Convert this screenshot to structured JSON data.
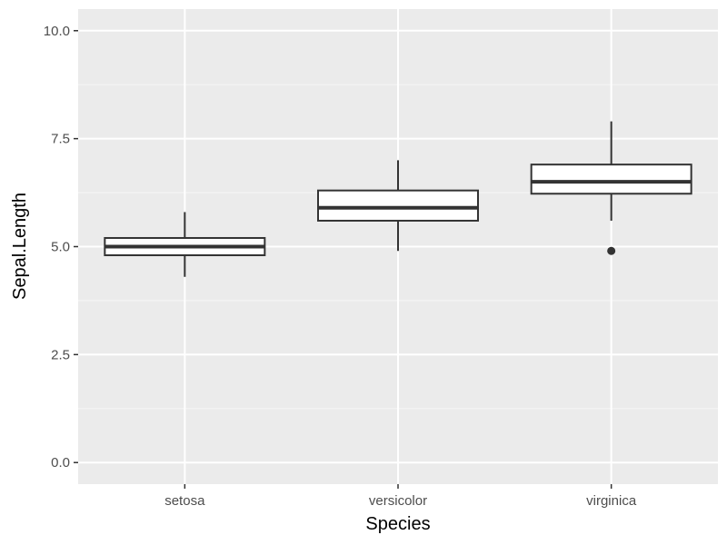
{
  "chart_data": {
    "type": "boxplot",
    "xlabel": "Species",
    "ylabel": "Sepal.Length",
    "categories": [
      "setosa",
      "versicolor",
      "virginica"
    ],
    "ylim": [
      -0.5,
      10.5
    ],
    "yticks": [
      0.0,
      2.5,
      5.0,
      7.5,
      10.0
    ],
    "ytick_labels": [
      "0.0",
      "2.5",
      "5.0",
      "7.5",
      "10.0"
    ],
    "boxes": [
      {
        "category": "setosa",
        "lower_whisker": 4.3,
        "q1": 4.8,
        "median": 5.0,
        "q3": 5.2,
        "upper_whisker": 5.8,
        "outliers": []
      },
      {
        "category": "versicolor",
        "lower_whisker": 4.9,
        "q1": 5.6,
        "median": 5.9,
        "q3": 6.3,
        "upper_whisker": 7.0,
        "outliers": []
      },
      {
        "category": "virginica",
        "lower_whisker": 5.6,
        "q1": 6.225,
        "median": 6.5,
        "q3": 6.9,
        "upper_whisker": 7.9,
        "outliers": [
          4.9
        ]
      }
    ],
    "grid": true,
    "legend": "none"
  },
  "colors": {
    "panel_background": "#ebebeb",
    "grid_major": "#ffffff",
    "grid_minor": "#f5f5f5",
    "box_fill": "#ffffff",
    "box_stroke": "#333333",
    "tick_color": "#333333"
  }
}
